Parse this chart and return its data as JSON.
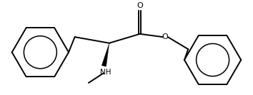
{
  "bg_color": "#ffffff",
  "line_color": "#000000",
  "line_width": 1.4,
  "figure_size": [
    3.54,
    1.34
  ],
  "dpi": 100,
  "nh_label": "NH",
  "o_label": "O",
  "carbonyl_o_label": "O",
  "xlim": [
    0,
    10.5
  ],
  "ylim": [
    0,
    4.0
  ]
}
